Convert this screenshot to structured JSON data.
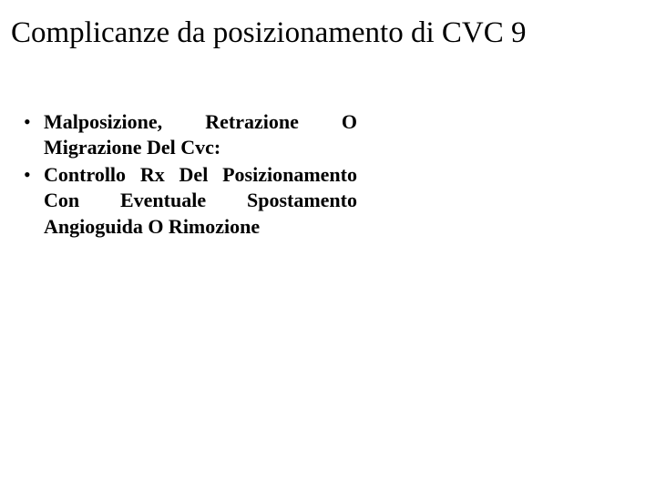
{
  "slide": {
    "title": "Complicanze da posizionamento di CVC 9",
    "bullets": [
      "Malposizione, Retrazione O Migrazione Del Cvc:",
      "Controllo Rx Del Posizionamento Con Eventuale Spostamento Angioguida O Rimozione"
    ],
    "style": {
      "title_fontsize": 33,
      "title_weight": "normal",
      "bullet_fontsize": 22,
      "bullet_weight": "bold",
      "font_family": "Times New Roman",
      "text_color": "#000000",
      "background_color": "#ffffff",
      "bullet_align": "justify"
    }
  }
}
